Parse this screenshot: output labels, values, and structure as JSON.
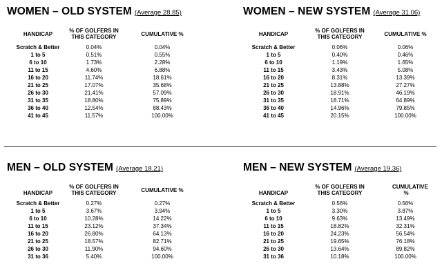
{
  "tables": [
    {
      "title": "WOMEN – OLD SYSTEM",
      "average": "(Average 28.85)",
      "headers": [
        "HANDICAP",
        "% OF GOLFERS IN THIS CATEGORY",
        "CUMULATIVE %"
      ],
      "rows": [
        [
          "Scratch & Better",
          "0.04%",
          "0.04%"
        ],
        [
          "1 to 5",
          "0.51%",
          "0.55%"
        ],
        [
          "6 to 10",
          "1.73%",
          "2.28%"
        ],
        [
          "11 to 15",
          "4.60%",
          "6.88%"
        ],
        [
          "16 to 20",
          "11.74%",
          "18.61%"
        ],
        [
          "21 to 25",
          "17.07%",
          "35.68%"
        ],
        [
          "26 to 30",
          "21.41%",
          "57.09%"
        ],
        [
          "31 to 35",
          "18.80%",
          "75.89%"
        ],
        [
          "36 to 40",
          "12.54%",
          "88.43%"
        ],
        [
          "41 to 45",
          "11.57%",
          "100.00%"
        ]
      ]
    },
    {
      "title": "WOMEN – NEW SYSTEM",
      "average": "(Average 31.06)",
      "headers": [
        "HANDICAP",
        "% OF GOLFERS IN THIS CATEGORY",
        "CUMULATIVE %"
      ],
      "rows": [
        [
          "Scratch & Better",
          "0.06%",
          "0.06%"
        ],
        [
          "1 to 5",
          "0.40%",
          "0.46%"
        ],
        [
          "6 to 10",
          "1.19%",
          "1.65%"
        ],
        [
          "11 to 15",
          "3.43%",
          "5.08%"
        ],
        [
          "16 to 20",
          "8.31%",
          "13.39%"
        ],
        [
          "21 to 25",
          "13.88%",
          "27.27%"
        ],
        [
          "26 to 30",
          "18.91%",
          "46.19%"
        ],
        [
          "31 to 35",
          "18.71%",
          "64.89%"
        ],
        [
          "36 to 40",
          "14.96%",
          "79.85%"
        ],
        [
          "41 to 45",
          "20.15%",
          "100.00%"
        ]
      ]
    },
    {
      "title": "MEN – OLD SYSTEM",
      "average": "(Average 18.21)",
      "headers": [
        "HANDICAP",
        "% OF GOLFERS IN THIS CATEGORY",
        "CUMULATIVE %"
      ],
      "rows": [
        [
          "Scratch & Better",
          "0.27%",
          "0.27%"
        ],
        [
          "1 to 5",
          "3.67%",
          "3.94%"
        ],
        [
          "6 to 10",
          "10.28%",
          "14.22%"
        ],
        [
          "11 to 15",
          "23.12%",
          "37.34%"
        ],
        [
          "16 to 20",
          "26.80%",
          "64.13%"
        ],
        [
          "21 to 25",
          "18.57%",
          "82.71%"
        ],
        [
          "26 to 30",
          "11.90%",
          "94.60%"
        ],
        [
          "31 to 36",
          "5.40%",
          "100.00%"
        ]
      ]
    },
    {
      "title": "MEN – NEW SYSTEM",
      "average": "(Average 19.36)",
      "headers": [
        "HANDICAP",
        "% OF GOLFERS IN THIS CATEGORY",
        "CUMULATIVE %"
      ],
      "rows": [
        [
          "Scratch & Better",
          "0.56%",
          "0.56%"
        ],
        [
          "1 to 5",
          "3.30%",
          "3.87%"
        ],
        [
          "6 to 10",
          "9.63%",
          "13.49%"
        ],
        [
          "11 to 15",
          "18.82%",
          "32.31%"
        ],
        [
          "16 to 20",
          "24.23%",
          "56.54%"
        ],
        [
          "21 to 25",
          "19.65%",
          "76.18%"
        ],
        [
          "26 to 30",
          "13.64%",
          "89.82%"
        ],
        [
          "31 to 36",
          "10.18%",
          "100.00%"
        ]
      ]
    }
  ]
}
